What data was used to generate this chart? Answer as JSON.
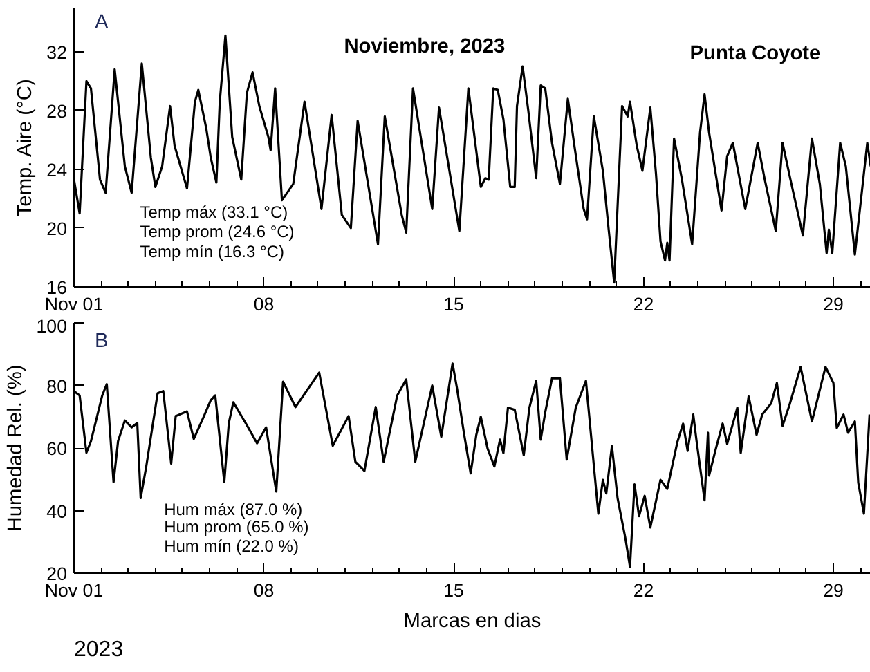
{
  "chart_data": [
    {
      "type": "line",
      "title": "Noviembre, 2023",
      "ylabel": "Temp. Aire (°C)",
      "annotations": [
        "A",
        "Punta Coyote",
        "Temp máx  (33.1 °C)",
        "Temp prom  (24.6 °C)",
        "Temp mín  (16.3 °C)"
      ],
      "xlim": [
        "2023-11-01T00:00",
        "2023-11-30T09:00"
      ],
      "ylim": [
        16,
        35
      ],
      "yticks": [
        16,
        20,
        24,
        28,
        32
      ],
      "xticks": [
        {
          "value": "2023-11-01",
          "label": "Nov 01"
        },
        {
          "value": "2023-11-02",
          "label": null
        },
        {
          "value": "2023-11-03",
          "label": null
        },
        {
          "value": "2023-11-04",
          "label": null
        },
        {
          "value": "2023-11-05",
          "label": null
        },
        {
          "value": "2023-11-06",
          "label": null
        },
        {
          "value": "2023-11-07",
          "label": null
        },
        {
          "value": "2023-11-08",
          "label": "08"
        },
        {
          "value": "2023-11-09",
          "label": null
        },
        {
          "value": "2023-11-10",
          "label": null
        },
        {
          "value": "2023-11-11",
          "label": null
        },
        {
          "value": "2023-11-12",
          "label": null
        },
        {
          "value": "2023-11-13",
          "label": null
        },
        {
          "value": "2023-11-14",
          "label": null
        },
        {
          "value": "2023-11-15",
          "label": "15"
        },
        {
          "value": "2023-11-16",
          "label": null
        },
        {
          "value": "2023-11-17",
          "label": null
        },
        {
          "value": "2023-11-18",
          "label": null
        },
        {
          "value": "2023-11-19",
          "label": null
        },
        {
          "value": "2023-11-20",
          "label": null
        },
        {
          "value": "2023-11-21",
          "label": null
        },
        {
          "value": "2023-11-22",
          "label": "22"
        },
        {
          "value": "2023-11-23",
          "label": null
        },
        {
          "value": "2023-11-24",
          "label": null
        },
        {
          "value": "2023-11-25",
          "label": null
        },
        {
          "value": "2023-11-26",
          "label": null
        },
        {
          "value": "2023-11-27",
          "label": null
        },
        {
          "value": "2023-11-28",
          "label": null
        },
        {
          "value": "2023-11-29",
          "label": "29"
        },
        {
          "value": "2023-11-30",
          "label": null
        }
      ],
      "x": [
        "2023-11-01T00:00",
        "2023-11-01T05:00",
        "2023-11-01T11:00",
        "2023-11-01T15:00",
        "2023-11-01T23:00",
        "2023-11-02T04:00",
        "2023-11-02T12:00",
        "2023-11-02T21:00",
        "2023-11-03T03:00",
        "2023-11-03T12:00",
        "2023-11-03T20:00",
        "2023-11-04T00:00",
        "2023-11-04T06:00",
        "2023-11-04T13:00",
        "2023-11-04T17:00",
        "2023-11-05T04:00",
        "2023-11-05T11:00",
        "2023-11-05T14:00",
        "2023-11-05T21:00",
        "2023-11-06T01:00",
        "2023-11-06T06:00",
        "2023-11-06T09:00",
        "2023-11-06T14:00",
        "2023-11-06T20:00",
        "2023-11-07T04:00",
        "2023-11-07T09:00",
        "2023-11-07T14:00",
        "2023-11-07T20:00",
        "2023-11-08T04:00",
        "2023-11-08T06:00",
        "2023-11-08T10:00",
        "2023-11-08T16:00",
        "2023-11-09T02:00",
        "2023-11-09T12:00",
        "2023-11-10T03:00",
        "2023-11-10T12:00",
        "2023-11-10T21:00",
        "2023-11-11T05:00",
        "2023-11-11T11:00",
        "2023-11-12T05:00",
        "2023-11-12T11:00",
        "2023-11-13T02:00",
        "2023-11-13T06:00",
        "2023-11-13T12:00",
        "2023-11-14T05:00",
        "2023-11-14T11:00",
        "2023-11-15T05:00",
        "2023-11-15T13:00",
        "2023-11-16T00:00",
        "2023-11-16T04:00",
        "2023-11-16T07:00",
        "2023-11-16T11:00",
        "2023-11-16T15:00",
        "2023-11-16T20:00",
        "2023-11-17T02:00",
        "2023-11-17T06:00",
        "2023-11-17T08:00",
        "2023-11-17T13:00",
        "2023-11-17T18:00",
        "2023-11-18T01:00",
        "2023-11-18T05:00",
        "2023-11-18T09:00",
        "2023-11-18T15:00",
        "2023-11-18T22:00",
        "2023-11-19T05:00",
        "2023-11-19T11:00",
        "2023-11-19T19:00",
        "2023-11-19T22:00",
        "2023-11-20T04:00",
        "2023-11-20T12:00",
        "2023-11-20T17:00",
        "2023-11-20T22:00",
        "2023-11-21T05:00",
        "2023-11-21T10:00",
        "2023-11-21T12:00",
        "2023-11-21T18:00",
        "2023-11-21T23:00",
        "2023-11-22T06:00",
        "2023-11-22T11:00",
        "2023-11-22T15:00",
        "2023-11-22T19:00",
        "2023-11-22T21:00",
        "2023-11-22T23:00",
        "2023-11-23T03:00",
        "2023-11-23T10:00",
        "2023-11-23T19:00",
        "2023-11-24T02:00",
        "2023-11-24T06:00",
        "2023-11-24T10:00",
        "2023-11-24T21:00",
        "2023-11-25T02:00",
        "2023-11-25T07:00",
        "2023-11-25T18:00",
        "2023-11-26T05:00",
        "2023-11-26T11:00",
        "2023-11-26T21:00",
        "2023-11-27T03:00",
        "2023-11-27T10:00",
        "2023-11-27T21:00",
        "2023-11-28T05:00",
        "2023-11-28T12:00",
        "2023-11-28T18:00",
        "2023-11-28T20:00",
        "2023-11-28T23:00",
        "2023-11-29T06:00",
        "2023-11-29T11:00",
        "2023-11-29T19:00",
        "2023-11-30T06:00",
        "2023-11-30T09:00"
      ],
      "series": [
        {
          "color": "#000000",
          "values": [
            23.3,
            21.0,
            30.0,
            29.5,
            23.3,
            22.4,
            30.8,
            24.2,
            22.4,
            31.2,
            24.8,
            22.8,
            24.2,
            28.3,
            25.6,
            22.7,
            28.6,
            29.4,
            26.8,
            24.8,
            23.1,
            28.6,
            33.1,
            26.2,
            23.3,
            29.2,
            30.6,
            28.3,
            26.2,
            25.3,
            29.5,
            21.9,
            23.0,
            28.6,
            21.3,
            27.7,
            20.9,
            20.0,
            27.3,
            18.9,
            27.6,
            20.9,
            19.7,
            29.5,
            21.3,
            28.2,
            19.8,
            29.5,
            22.8,
            23.4,
            23.3,
            29.5,
            29.4,
            27.4,
            22.8,
            22.8,
            28.3,
            31.0,
            28.0,
            23.4,
            29.7,
            29.5,
            25.8,
            23.0,
            28.8,
            25.5,
            21.3,
            20.6,
            27.6,
            23.9,
            20.0,
            16.3,
            28.3,
            27.6,
            28.6,
            25.6,
            23.9,
            28.2,
            23.7,
            19.1,
            17.8,
            19.0,
            17.8,
            26.1,
            23.3,
            18.9,
            26.5,
            29.1,
            26.5,
            21.2,
            24.9,
            25.8,
            21.3,
            25.8,
            23.4,
            19.8,
            25.8,
            23.3,
            19.5,
            26.1,
            23.0,
            18.3,
            19.9,
            18.3,
            25.8,
            24.2,
            18.2,
            25.8,
            24.2
          ]
        }
      ]
    },
    {
      "type": "line",
      "xlabel": "Marcas en dias",
      "ylabel": "Humedad Rel. (%)",
      "annotations": [
        "B",
        "Hum máx (87.0 %)",
        "Hum prom (65.0 %)",
        "Hum mín (22.0 %)",
        "2023"
      ],
      "xlim": [
        "2023-11-01T00:00",
        "2023-11-30T09:00"
      ],
      "ylim": [
        20,
        100
      ],
      "yticks": [
        20,
        40,
        60,
        80,
        100
      ],
      "xticks": [
        {
          "value": "2023-11-01",
          "label": "Nov 01"
        },
        {
          "value": "2023-11-02",
          "label": null
        },
        {
          "value": "2023-11-03",
          "label": null
        },
        {
          "value": "2023-11-04",
          "label": null
        },
        {
          "value": "2023-11-05",
          "label": null
        },
        {
          "value": "2023-11-06",
          "label": null
        },
        {
          "value": "2023-11-07",
          "label": null
        },
        {
          "value": "2023-11-08",
          "label": "08"
        },
        {
          "value": "2023-11-09",
          "label": null
        },
        {
          "value": "2023-11-10",
          "label": null
        },
        {
          "value": "2023-11-11",
          "label": null
        },
        {
          "value": "2023-11-12",
          "label": null
        },
        {
          "value": "2023-11-13",
          "label": null
        },
        {
          "value": "2023-11-14",
          "label": null
        },
        {
          "value": "2023-11-15",
          "label": "15"
        },
        {
          "value": "2023-11-16",
          "label": null
        },
        {
          "value": "2023-11-17",
          "label": null
        },
        {
          "value": "2023-11-18",
          "label": null
        },
        {
          "value": "2023-11-19",
          "label": null
        },
        {
          "value": "2023-11-20",
          "label": null
        },
        {
          "value": "2023-11-21",
          "label": null
        },
        {
          "value": "2023-11-22",
          "label": "22"
        },
        {
          "value": "2023-11-23",
          "label": null
        },
        {
          "value": "2023-11-24",
          "label": null
        },
        {
          "value": "2023-11-25",
          "label": null
        },
        {
          "value": "2023-11-26",
          "label": null
        },
        {
          "value": "2023-11-27",
          "label": null
        },
        {
          "value": "2023-11-28",
          "label": null
        },
        {
          "value": "2023-11-29",
          "label": "29"
        },
        {
          "value": "2023-11-30",
          "label": null
        }
      ],
      "x": [
        "2023-11-01T00:00",
        "2023-11-01T05:00",
        "2023-11-01T11:00",
        "2023-11-01T15:00",
        "2023-11-02T01:00",
        "2023-11-02T05:00",
        "2023-11-02T11:00",
        "2023-11-02T15:00",
        "2023-11-02T21:00",
        "2023-11-03T03:00",
        "2023-11-03T08:00",
        "2023-11-03T11:00",
        "2023-11-03T16:00",
        "2023-11-04T02:00",
        "2023-11-04T07:00",
        "2023-11-04T14:00",
        "2023-11-04T18:00",
        "2023-11-05T04:00",
        "2023-11-05T10:00",
        "2023-11-05T19:00",
        "2023-11-06T01:00",
        "2023-11-06T05:00",
        "2023-11-06T13:00",
        "2023-11-06T17:00",
        "2023-11-06T21:00",
        "2023-11-07T09:00",
        "2023-11-07T18:00",
        "2023-11-08T02:00",
        "2023-11-08T11:00",
        "2023-11-08T17:00",
        "2023-11-09T04:00",
        "2023-11-10T01:00",
        "2023-11-10T13:00",
        "2023-11-11T03:00",
        "2023-11-11T09:00",
        "2023-11-11T17:00",
        "2023-11-12T03:00",
        "2023-11-12T10:00",
        "2023-11-12T22:00",
        "2023-11-13T06:00",
        "2023-11-13T14:00",
        "2023-11-14T05:00",
        "2023-11-14T13:00",
        "2023-11-14T23:00",
        "2023-11-15T03:00",
        "2023-11-15T09:00",
        "2023-11-15T15:00",
        "2023-11-15T20:00",
        "2023-11-16T00:00",
        "2023-11-16T06:00",
        "2023-11-16T12:00",
        "2023-11-16T17:00",
        "2023-11-16T20:00",
        "2023-11-17T00:00",
        "2023-11-17T06:00",
        "2023-11-17T14:00",
        "2023-11-17T19:00",
        "2023-11-18T01:00",
        "2023-11-18T05:00",
        "2023-11-18T09:00",
        "2023-11-18T15:00",
        "2023-11-18T22:00",
        "2023-11-19T04:00",
        "2023-11-19T12:00",
        "2023-11-19T21:00",
        "2023-11-20T08:00",
        "2023-11-20T12:00",
        "2023-11-20T15:00",
        "2023-11-20T20:00",
        "2023-11-21T01:00",
        "2023-11-21T08:00",
        "2023-11-21T12:00",
        "2023-11-21T16:00",
        "2023-11-21T20:00",
        "2023-11-22T01:00",
        "2023-11-22T06:00",
        "2023-11-22T15:00",
        "2023-11-22T21:00",
        "2023-11-23T06:00",
        "2023-11-23T11:00",
        "2023-11-23T15:00",
        "2023-11-23T20:00",
        "2023-11-23T23:00",
        "2023-11-24T06:00",
        "2023-11-24T09:00",
        "2023-11-24T10:00",
        "2023-11-24T16:00",
        "2023-11-24T22:00",
        "2023-11-25T02:00",
        "2023-11-25T11:00",
        "2023-11-25T14:00",
        "2023-11-25T21:00",
        "2023-11-26T04:00",
        "2023-11-26T09:00",
        "2023-11-26T17:00",
        "2023-11-26T22:00",
        "2023-11-27T03:00",
        "2023-11-27T09:00",
        "2023-11-27T19:00",
        "2023-11-28T05:00",
        "2023-11-28T17:00",
        "2023-11-29T00:00",
        "2023-11-29T03:00",
        "2023-11-29T09:00",
        "2023-11-29T13:00",
        "2023-11-29T19:00",
        "2023-11-29T22:00",
        "2023-11-30T03:00",
        "2023-11-30T08:00"
      ],
      "series": [
        {
          "color": "#000000",
          "values": [
            78.2,
            76.8,
            58.5,
            62.2,
            76.8,
            80.4,
            49.1,
            62.2,
            68.8,
            66.6,
            68.0,
            44.0,
            54.2,
            77.5,
            78.2,
            55.0,
            70.2,
            71.7,
            62.9,
            70.2,
            75.3,
            76.8,
            49.1,
            68.0,
            74.6,
            67.3,
            61.5,
            66.6,
            46.1,
            81.2,
            73.1,
            84.1,
            60.7,
            70.2,
            55.6,
            52.7,
            73.1,
            55.6,
            76.8,
            81.9,
            55.6,
            80.0,
            63.6,
            87.0,
            78.9,
            64.9,
            51.9,
            64.2,
            70.0,
            59.8,
            54.1,
            62.7,
            58.4,
            72.9,
            72.2,
            57.7,
            72.9,
            81.5,
            62.7,
            71.4,
            82.3,
            82.3,
            56.3,
            72.9,
            81.5,
            39.0,
            49.8,
            45.5,
            60.6,
            44.0,
            31.0,
            22.0,
            48.4,
            38.2,
            44.7,
            34.6,
            49.8,
            46.9,
            62.0,
            67.8,
            59.1,
            70.7,
            62.0,
            43.3,
            64.9,
            51.2,
            59.8,
            67.8,
            61.3,
            72.9,
            58.4,
            76.5,
            64.2,
            70.7,
            74.3,
            80.8,
            67.1,
            73.6,
            85.9,
            68.5,
            85.9,
            80.8,
            66.4,
            70.7,
            64.9,
            68.5,
            48.9,
            39.0,
            70.7
          ]
        }
      ]
    }
  ]
}
